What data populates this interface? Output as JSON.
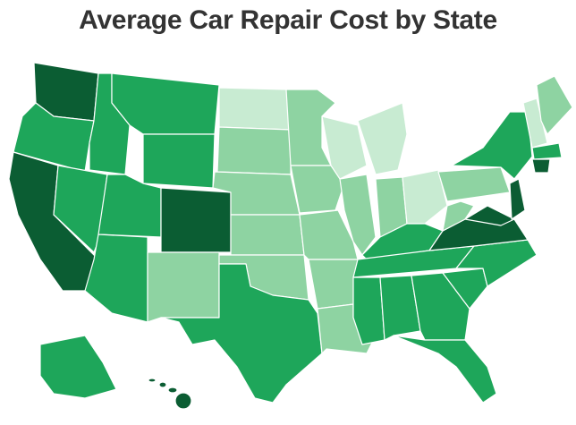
{
  "title": "Average Car Repair Cost by State"
}
